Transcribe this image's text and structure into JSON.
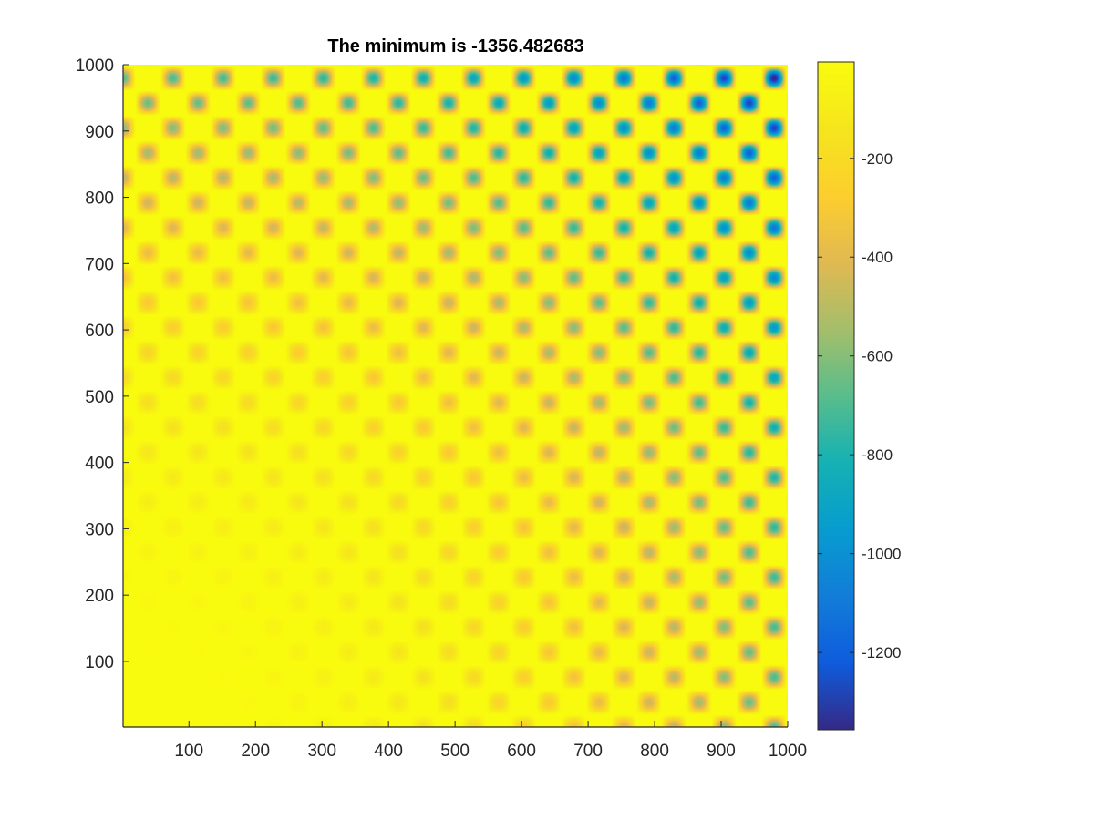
{
  "chart_data": {
    "type": "heatmap",
    "title": "The minimum is -1356.482683",
    "xlabel": "",
    "ylabel": "",
    "xlim": [
      1,
      1000
    ],
    "ylim": [
      1,
      1000
    ],
    "x_ticks": [
      100,
      200,
      300,
      400,
      500,
      600,
      700,
      800,
      900,
      1000
    ],
    "y_ticks": [
      100,
      200,
      300,
      400,
      500,
      600,
      700,
      800,
      900,
      1000
    ],
    "colorbar": {
      "range": [
        -1356.482683,
        -5
      ],
      "ticks": [
        -200,
        -400,
        -600,
        -800,
        -1000,
        -1200
      ],
      "colormap": "parula",
      "placement": "right"
    },
    "minimum": -1356.482683,
    "minimum_location_approx": [
      910,
      920
    ],
    "grid": false,
    "colors": {
      "axis": "#262626",
      "low": "#352a87",
      "high": "#f9fb0e"
    }
  }
}
